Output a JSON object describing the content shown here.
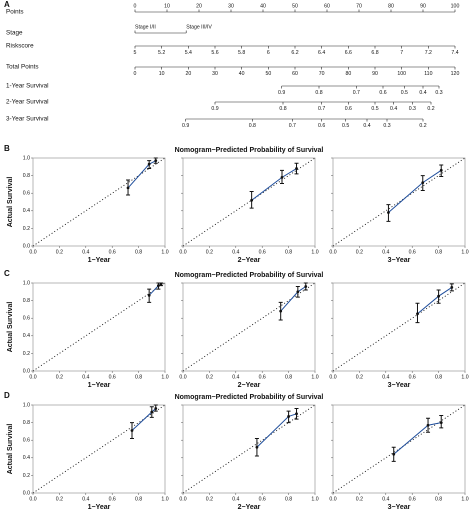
{
  "chart_data": [
    {
      "type": "nomogram",
      "panel": "A",
      "points_range": [
        0,
        100
      ],
      "total_points_range": [
        0,
        120
      ],
      "scales": [
        {
          "name": "Points",
          "scale": "points",
          "ticks": [
            0,
            10,
            20,
            30,
            40,
            50,
            60,
            70,
            80,
            90,
            100
          ]
        },
        {
          "name": "Stage",
          "scale": "points",
          "levels": [
            "Stage I/II",
            "Stage III/IV"
          ],
          "positions": [
            0,
            16
          ]
        },
        {
          "name": "Riskscore",
          "scale": "points",
          "ticks": [
            5,
            5.2,
            5.4,
            5.6,
            5.8,
            6,
            6.2,
            6.4,
            6.6,
            6.8,
            7,
            7.2,
            7.4
          ],
          "lim": [
            5,
            7.4
          ],
          "points": [
            0,
            100
          ]
        },
        {
          "name": "Total Points",
          "scale": "total_points",
          "ticks": [
            0,
            10,
            20,
            30,
            40,
            50,
            60,
            70,
            80,
            90,
            100,
            110,
            120
          ]
        },
        {
          "name": "1-Year Survival",
          "scale": "total_points",
          "ticks": [
            0.9,
            0.8,
            0.7,
            0.6,
            0.5,
            0.4,
            0.3
          ],
          "positions": [
            55,
            69,
            83,
            93,
            101,
            108,
            114
          ]
        },
        {
          "name": "2-Year Survival",
          "scale": "total_points",
          "ticks": [
            0.9,
            0.8,
            0.7,
            0.6,
            0.5,
            0.4,
            0.3,
            0.2
          ],
          "positions": [
            30,
            55.5,
            70,
            80,
            90,
            97,
            104,
            111
          ]
        },
        {
          "name": "3-Year Survival",
          "scale": "total_points",
          "ticks": [
            0.9,
            0.8,
            0.7,
            0.6,
            0.5,
            0.4,
            0.3,
            0.2
          ],
          "positions": [
            19,
            44,
            59,
            70,
            79,
            87,
            94.5,
            108
          ]
        }
      ]
    },
    {
      "type": "calibration",
      "panel": "B",
      "title": "Nomogram−Predicted Probability of Survival",
      "y_label": "Actual Survival",
      "x_label": "1−Year",
      "color": "#1f4e9c",
      "x": [
        0.72,
        0.88,
        0.93
      ],
      "values": [
        0.66,
        0.93,
        0.97
      ],
      "lower": [
        0.58,
        0.88,
        0.94
      ],
      "upper": [
        0.75,
        0.97,
        1.0
      ]
    },
    {
      "type": "calibration",
      "x_label": "2−Year",
      "color": "#1f4e9c",
      "x": [
        0.52,
        0.75,
        0.86
      ],
      "values": [
        0.52,
        0.78,
        0.88
      ],
      "lower": [
        0.43,
        0.71,
        0.82
      ],
      "upper": [
        0.62,
        0.86,
        0.94
      ]
    },
    {
      "type": "calibration",
      "x_label": "3−Year",
      "color": "#1f4e9c",
      "x": [
        0.42,
        0.68,
        0.82
      ],
      "values": [
        0.38,
        0.72,
        0.86
      ],
      "lower": [
        0.28,
        0.63,
        0.79
      ],
      "upper": [
        0.47,
        0.8,
        0.92
      ]
    },
    {
      "type": "calibration",
      "panel": "C",
      "title": "Nomogram−Predicted Probability of Survival",
      "y_label": "Actual Survival",
      "x_label": "1−Year",
      "color": "#1f4e9c",
      "x": [
        0.88,
        0.95,
        0.97
      ],
      "values": [
        0.86,
        0.97,
        0.99
      ],
      "lower": [
        0.78,
        0.93,
        0.97
      ],
      "upper": [
        0.93,
        1.0,
        1.0
      ]
    },
    {
      "type": "calibration",
      "x_label": "2−Year",
      "color": "#1f4e9c",
      "x": [
        0.74,
        0.87,
        0.93
      ],
      "values": [
        0.68,
        0.9,
        0.96
      ],
      "lower": [
        0.58,
        0.84,
        0.92
      ],
      "upper": [
        0.78,
        0.96,
        1.0
      ]
    },
    {
      "type": "calibration",
      "x_label": "3−Year",
      "color": "#1f4e9c",
      "x": [
        0.64,
        0.8,
        0.9
      ],
      "values": [
        0.65,
        0.85,
        0.95
      ],
      "lower": [
        0.55,
        0.77,
        0.91
      ],
      "upper": [
        0.77,
        0.92,
        0.99
      ]
    },
    {
      "type": "calibration",
      "panel": "D",
      "title": "Nomogram−Predicted Probability of Survival",
      "y_label": "Actual Survival",
      "x_label": "1−Year",
      "color": "#1f4e9c",
      "x": [
        0.75,
        0.9,
        0.93
      ],
      "values": [
        0.71,
        0.92,
        0.96
      ],
      "lower": [
        0.62,
        0.86,
        0.93
      ],
      "upper": [
        0.8,
        0.98,
        1.0
      ]
    },
    {
      "type": "calibration",
      "x_label": "2−Year",
      "color": "#1f4e9c",
      "x": [
        0.56,
        0.8,
        0.86
      ],
      "values": [
        0.52,
        0.87,
        0.9
      ],
      "lower": [
        0.42,
        0.8,
        0.84
      ],
      "upper": [
        0.62,
        0.93,
        0.96
      ]
    },
    {
      "type": "calibration",
      "x_label": "3−Year",
      "color": "#1f4e9c",
      "x": [
        0.46,
        0.72,
        0.82
      ],
      "values": [
        0.44,
        0.77,
        0.8
      ],
      "lower": [
        0.36,
        0.69,
        0.74
      ],
      "upper": [
        0.52,
        0.85,
        0.88
      ]
    }
  ],
  "calibration_axis": {
    "lim": [
      0,
      1
    ],
    "ticks": [
      {
        "value": 0,
        "label": "0.0"
      },
      0.2,
      0.4,
      0.6,
      0.8,
      {
        "value": 1,
        "label": "1.0"
      }
    ]
  }
}
